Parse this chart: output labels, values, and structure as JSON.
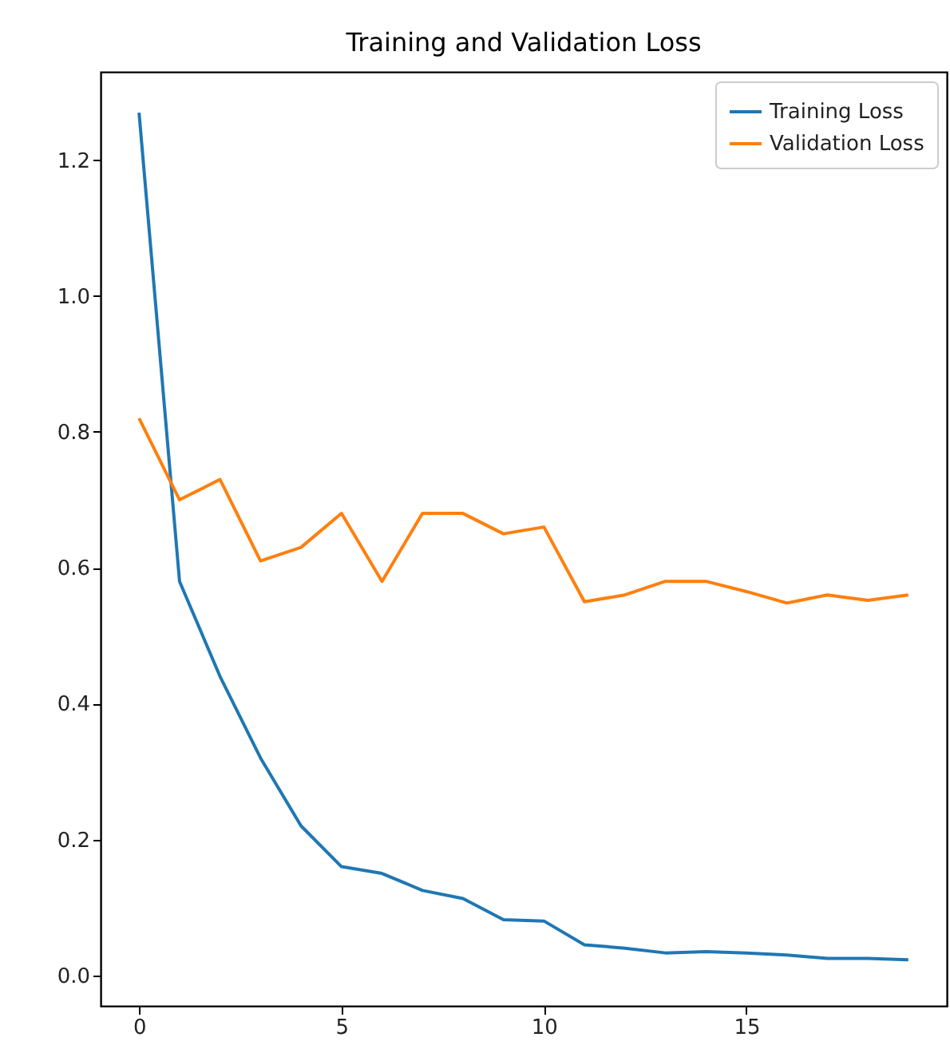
{
  "chart_data": {
    "type": "line",
    "title": "Training and Validation Loss",
    "x": [
      0,
      1,
      2,
      3,
      4,
      5,
      6,
      7,
      8,
      9,
      10,
      11,
      12,
      13,
      14,
      15,
      16,
      17,
      18,
      19
    ],
    "series": [
      {
        "name": "Training Loss",
        "color": "#1f77b4",
        "values": [
          1.27,
          0.58,
          0.44,
          0.32,
          0.22,
          0.16,
          0.15,
          0.125,
          0.113,
          0.082,
          0.08,
          0.045,
          0.04,
          0.033,
          0.035,
          0.033,
          0.03,
          0.025,
          0.025,
          0.023
        ]
      },
      {
        "name": "Validation Loss",
        "color": "#ff7f0e",
        "values": [
          0.82,
          0.7,
          0.73,
          0.61,
          0.63,
          0.68,
          0.58,
          0.68,
          0.68,
          0.65,
          0.66,
          0.55,
          0.56,
          0.58,
          0.58,
          0.565,
          0.548,
          0.56,
          0.552,
          0.56
        ]
      }
    ],
    "xlim": [
      -0.95,
      19.95
    ],
    "xticks": [
      0,
      5,
      10,
      15
    ],
    "ylim": [
      -0.045,
      1.33
    ],
    "yticks": [
      {
        "value": 0,
        "label": "0.0"
      },
      {
        "value": 0.2,
        "label": "0.2"
      },
      {
        "value": 0.4,
        "label": "0.4"
      },
      {
        "value": 0.6,
        "label": "0.6"
      },
      {
        "value": 0.8,
        "label": "0.8"
      },
      {
        "value": 1.0,
        "label": "1.0"
      },
      {
        "value": 1.2,
        "label": "1.2"
      }
    ],
    "legend": "top right",
    "grid": false,
    "marker": "none",
    "line_style": "solid"
  }
}
